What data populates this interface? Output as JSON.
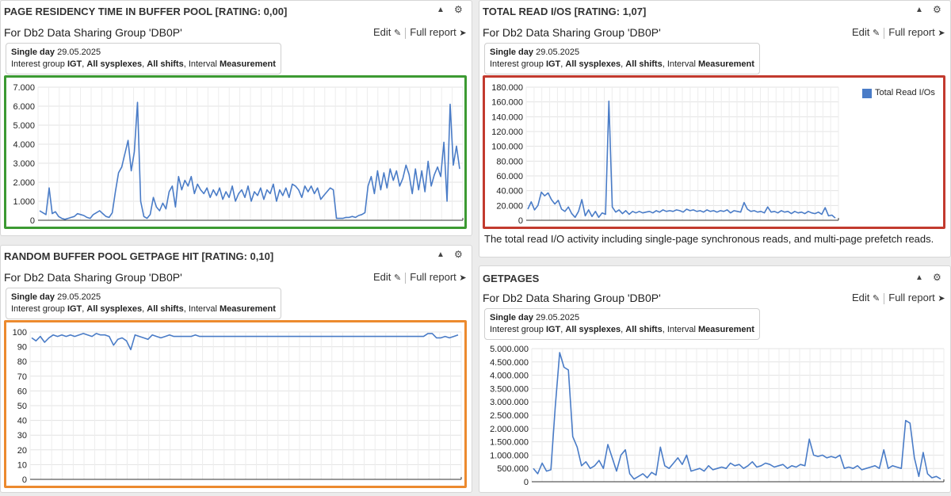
{
  "common": {
    "edit_label": "Edit",
    "edit_icon": "edit-icon",
    "full_report_label": "Full report",
    "full_report_icon": "arrow-circle-right-icon",
    "line_color": "#4a7cc7"
  },
  "panels": [
    {
      "title": "PAGE RESIDENCY TIME IN BUFFER POOL [RATING: 0,00]",
      "subtitle": "For Db2 Data Sharing Group 'DB0P'",
      "info_line1_bold": "Single day",
      "info_line1_rest": " 29.05.2025",
      "info_ig_label": "Interest group ",
      "info_ig": "IGT",
      "info_sys": "All sysplexes",
      "info_shifts": "All shifts",
      "info_interval_label": ", Interval ",
      "info_interval": "Measurement",
      "frame_color": "#3c9a32"
    },
    {
      "title": "TOTAL READ I/OS [RATING: 1,07]",
      "subtitle": "For Db2 Data Sharing Group 'DB0P'",
      "info_line1_bold": "Single day",
      "info_line1_rest": " 29.05.2025",
      "info_ig_label": "Interest group ",
      "info_ig": "IGT",
      "info_sys": "All sysplexes",
      "info_shifts": "All shifts",
      "info_interval_label": ", Interval ",
      "info_interval": "Measurement",
      "frame_color": "#c23a2e",
      "description": "The total read I/O activity including single-page synchronous reads, and multi-page prefetch reads."
    },
    {
      "title": "RANDOM BUFFER POOL GETPAGE HIT [RATING: 0,10]",
      "subtitle": "For Db2 Data Sharing Group 'DB0P'",
      "info_line1_bold": "Single day",
      "info_line1_rest": " 29.05.2025",
      "info_ig_label": "Interest group ",
      "info_ig": "IGT",
      "info_sys": "All sysplexes",
      "info_shifts": "All shifts",
      "info_interval_label": ", Interval ",
      "info_interval": "Measurement",
      "frame_color": "#ec8a2e"
    },
    {
      "title": "GETPAGES",
      "subtitle": "For Db2 Data Sharing Group 'DB0P'",
      "info_line1_bold": "Single day",
      "info_line1_rest": " 29.05.2025",
      "info_ig_label": "Interest group ",
      "info_ig": "IGT",
      "info_sys": "All sysplexes",
      "info_shifts": "All shifts",
      "info_interval_label": ", Interval ",
      "info_interval": "Measurement"
    }
  ],
  "chart_data": [
    {
      "type": "line",
      "ylim": [
        0,
        7000
      ],
      "yticks": [
        "0",
        "1.000",
        "2.000",
        "3.000",
        "4.000",
        "5.000",
        "6.000",
        "7.000"
      ],
      "series": [
        {
          "values": [
            500,
            400,
            300,
            1700,
            350,
            450,
            200,
            100,
            50,
            100,
            150,
            200,
            350,
            300,
            250,
            150,
            100,
            300,
            400,
            500,
            350,
            200,
            150,
            400,
            1500,
            2500,
            2800,
            3500,
            4200,
            2600,
            3600,
            6200,
            1000,
            200,
            100,
            300,
            1200,
            700,
            500,
            900,
            600,
            1500,
            1800,
            700,
            2300,
            1600,
            2100,
            1800,
            2300,
            1400,
            1900,
            1600,
            1400,
            1700,
            1200,
            1600,
            1300,
            1700,
            1100,
            1500,
            1200,
            1800,
            1000,
            1400,
            1600,
            1200,
            1800,
            1000,
            1500,
            1300,
            1700,
            1100,
            1600,
            1400,
            1900,
            1000,
            1600,
            1300,
            1700,
            1200,
            1900,
            1800,
            1600,
            1200,
            1800,
            1500,
            1800,
            1400,
            1700,
            1100,
            1300,
            1500,
            1700,
            1600,
            100,
            100,
            100,
            150,
            150,
            200,
            150,
            250,
            300,
            400,
            1800,
            2300,
            1400,
            2600,
            1600,
            2500,
            1700,
            2700,
            2100,
            2600,
            1800,
            2200,
            2900,
            2400,
            1400,
            2700,
            1600,
            2600,
            1500,
            3100,
            1800,
            2400,
            2800,
            2300,
            4100,
            1000,
            6100,
            2900,
            3900,
            2700
          ]
        }
      ]
    },
    {
      "type": "line",
      "ylim": [
        0,
        180000
      ],
      "yticks": [
        "0",
        "20.000",
        "40.000",
        "60.000",
        "80.000",
        "100.000",
        "120.000",
        "140.000",
        "160.000",
        "180.000"
      ],
      "series": [
        {
          "name": "Total Read I/Os",
          "values": [
            15000,
            25000,
            14000,
            20000,
            38000,
            33000,
            37000,
            28000,
            22000,
            27000,
            15000,
            12000,
            18000,
            9000,
            4000,
            12000,
            28000,
            6000,
            14000,
            5000,
            12000,
            4000,
            10000,
            8000,
            161000,
            18000,
            11000,
            14000,
            9000,
            13000,
            8000,
            12000,
            10000,
            12000,
            10000,
            11000,
            12000,
            10000,
            13000,
            11000,
            14000,
            12000,
            13000,
            12000,
            14000,
            13000,
            11000,
            15000,
            13000,
            14000,
            12000,
            13000,
            11000,
            14000,
            12000,
            13000,
            11000,
            13000,
            12000,
            14000,
            10000,
            13000,
            12000,
            11000,
            24000,
            15000,
            12000,
            13000,
            11000,
            12000,
            10000,
            18000,
            11000,
            12000,
            10000,
            13000,
            11000,
            12000,
            9000,
            12000,
            10000,
            11000,
            9000,
            12000,
            10000,
            9000,
            11000,
            8000,
            17000,
            6000,
            7000,
            3000
          ]
        }
      ]
    },
    {
      "type": "line",
      "ylim": [
        0,
        100
      ],
      "yticks": [
        "0",
        "10",
        "20",
        "30",
        "40",
        "50",
        "60",
        "70",
        "80",
        "90",
        "100"
      ],
      "series": [
        {
          "values": [
            96,
            94,
            97,
            93,
            96,
            98,
            97,
            98,
            97,
            98,
            97,
            98,
            99,
            98,
            97,
            99,
            98,
            98,
            97,
            91,
            95,
            96,
            94,
            88,
            98,
            97,
            96,
            95,
            98,
            97,
            96,
            97,
            98,
            97,
            97,
            97,
            97,
            97,
            98,
            97,
            97,
            97,
            97,
            97,
            97,
            97,
            97,
            97,
            97,
            97,
            97,
            97,
            97,
            97,
            97,
            97,
            97,
            97,
            97,
            97,
            97,
            97,
            97,
            97,
            97,
            97,
            97,
            97,
            97,
            97,
            97,
            97,
            97,
            97,
            97,
            97,
            97,
            97,
            97,
            97,
            97,
            97,
            97,
            97,
            97,
            97,
            97,
            97,
            97,
            97,
            97,
            97,
            99,
            99,
            96,
            96,
            97,
            96,
            97,
            98
          ]
        }
      ]
    },
    {
      "type": "line",
      "ylim": [
        0,
        5000000
      ],
      "yticks": [
        "0",
        "500.000",
        "1.000.000",
        "1.500.000",
        "2.000.000",
        "2.500.000",
        "3.000.000",
        "3.500.000",
        "4.000.000",
        "4.500.000",
        "5.000.000"
      ],
      "series": [
        {
          "values": [
            500000,
            300000,
            700000,
            400000,
            450000,
            2800000,
            4850000,
            4300000,
            4200000,
            1700000,
            1300000,
            600000,
            750000,
            500000,
            600000,
            800000,
            500000,
            1400000,
            900000,
            400000,
            1000000,
            1200000,
            300000,
            100000,
            200000,
            300000,
            150000,
            350000,
            250000,
            1300000,
            600000,
            500000,
            700000,
            900000,
            650000,
            1000000,
            400000,
            450000,
            500000,
            400000,
            600000,
            450000,
            500000,
            550000,
            500000,
            700000,
            600000,
            650000,
            500000,
            600000,
            750000,
            550000,
            600000,
            700000,
            650000,
            550000,
            600000,
            650000,
            500000,
            600000,
            550000,
            650000,
            600000,
            1600000,
            1000000,
            950000,
            1000000,
            900000,
            950000,
            900000,
            1000000,
            500000,
            550000,
            500000,
            600000,
            450000,
            500000,
            550000,
            600000,
            500000,
            1200000,
            500000,
            600000,
            550000,
            500000,
            2300000,
            2200000,
            900000,
            200000,
            1100000,
            300000,
            150000,
            200000,
            100000
          ]
        }
      ]
    }
  ]
}
